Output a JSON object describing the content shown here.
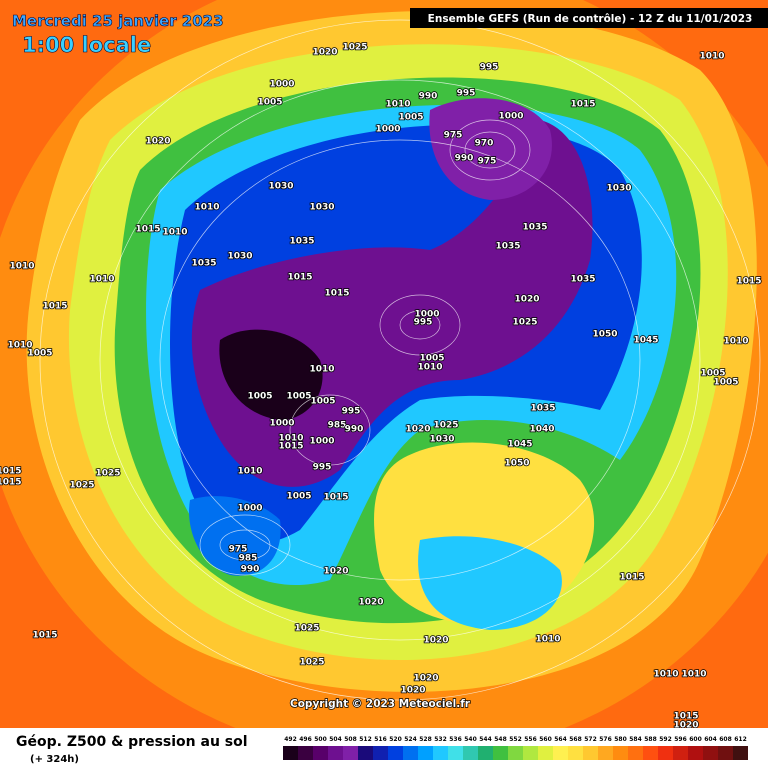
{
  "header": {
    "date": "Mercredi 25 janvier 2023",
    "time": "1:00 locale",
    "run": "Ensemble GEFS  (Run de contrôle)  -  12 Z du 11/01/2023"
  },
  "map": {
    "pressure_labels": [
      1020,
      1025,
      995,
      1010,
      1000,
      1005,
      990,
      995,
      1010,
      1005,
      1000,
      1000,
      1015,
      975,
      970,
      990,
      975,
      1020,
      1030,
      1030,
      1010,
      1030,
      1015,
      1010,
      1035,
      1035,
      1035,
      1035,
      1030,
      1010,
      1010,
      1015,
      1035,
      1015,
      1015,
      1020,
      1015,
      1025,
      1000,
      995,
      1050,
      1045,
      1010,
      1005,
      1010,
      1005,
      1010,
      1010,
      1005,
      1005,
      1005,
      1005,
      1005,
      995,
      1035,
      985,
      990,
      1000,
      1020,
      1025,
      1040,
      1010,
      1015,
      1000,
      1030,
      1045,
      1015,
      1015,
      1025,
      1010,
      1050,
      995,
      1025,
      1005,
      1015,
      1000,
      975,
      985,
      990,
      1020,
      1015,
      1020,
      1015,
      1025,
      1020,
      1010,
      1025,
      1010,
      1010,
      1020,
      1020,
      1015,
      1020
    ]
  },
  "copyright": "Copyright © 2023 Meteociel.fr",
  "footer": {
    "title": "Géop. Z500 & pression au sol",
    "lead": "(+ 324h)"
  },
  "legend": {
    "levels": [
      492,
      496,
      500,
      504,
      508,
      512,
      516,
      520,
      524,
      528,
      532,
      536,
      540,
      544,
      548,
      552,
      556,
      560,
      564,
      568,
      572,
      576,
      580,
      584,
      588,
      592,
      596,
      600,
      604,
      608,
      612
    ],
    "colors": [
      "#1a001a",
      "#3a0040",
      "#58006a",
      "#6e1090",
      "#8020a8",
      "#1a0a7a",
      "#1020b0",
      "#0040e0",
      "#0070f0",
      "#00a0ff",
      "#20c8ff",
      "#40e0e8",
      "#30c8b0",
      "#20b070",
      "#40c040",
      "#80d840",
      "#b0e840",
      "#e0f040",
      "#fff050",
      "#ffe040",
      "#ffc830",
      "#ffa820",
      "#ff8c10",
      "#ff7010",
      "#ff5010",
      "#f03010",
      "#d02010",
      "#b01010",
      "#901010",
      "#701010",
      "#401010"
    ]
  }
}
